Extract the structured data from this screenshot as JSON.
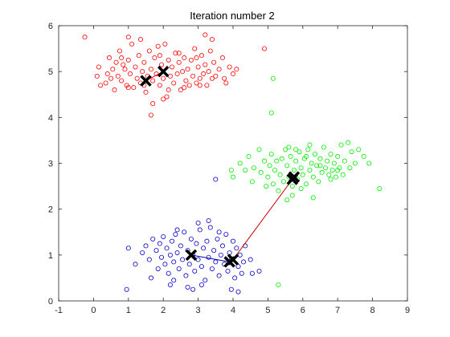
{
  "chart_data": {
    "type": "scatter",
    "title": "Iteration number 2",
    "xlabel": "",
    "ylabel": "",
    "xlim": [
      -1,
      9
    ],
    "ylim": [
      0,
      6
    ],
    "xticks": [
      -1,
      0,
      1,
      2,
      3,
      4,
      5,
      6,
      7,
      8,
      9
    ],
    "yticks": [
      0,
      1,
      2,
      3,
      4,
      5,
      6
    ],
    "grid": false,
    "legend": "none",
    "colors": {
      "cluster_1": "#ff0000",
      "cluster_2": "#00ee00",
      "cluster_3": "#0000cc",
      "centroid": "#000000",
      "path_1": "#ff0000",
      "path_2": "#00cc00",
      "path_3": "#0000aa",
      "axes": "#262626"
    },
    "series": [
      {
        "color": "#ff0000",
        "points": [
          [
            -0.25,
            5.75
          ],
          [
            0.1,
            4.9
          ],
          [
            0.15,
            5.1
          ],
          [
            0.2,
            4.7
          ],
          [
            0.35,
            4.75
          ],
          [
            0.4,
            4.95
          ],
          [
            0.45,
            5.3
          ],
          [
            0.5,
            4.85
          ],
          [
            0.55,
            5.05
          ],
          [
            0.6,
            4.6
          ],
          [
            0.65,
            5.2
          ],
          [
            0.7,
            4.9
          ],
          [
            0.75,
            5.45
          ],
          [
            0.8,
            4.8
          ],
          [
            0.85,
            5.15
          ],
          [
            0.9,
            5.05
          ],
          [
            0.95,
            4.7
          ],
          [
            1.0,
            5.75
          ],
          [
            1.0,
            5.25
          ],
          [
            1.05,
            4.95
          ],
          [
            1.1,
            5.6
          ],
          [
            1.15,
            4.65
          ],
          [
            1.2,
            5.1
          ],
          [
            1.25,
            4.85
          ],
          [
            1.3,
            5.35
          ],
          [
            1.35,
            4.75
          ],
          [
            1.4,
            5.0
          ],
          [
            1.45,
            5.2
          ],
          [
            1.5,
            4.55
          ],
          [
            1.55,
            4.9
          ],
          [
            1.6,
            5.45
          ],
          [
            1.65,
            5.05
          ],
          [
            1.7,
            4.8
          ],
          [
            1.75,
            5.3
          ],
          [
            1.8,
            4.95
          ],
          [
            1.85,
            5.55
          ],
          [
            1.9,
            4.7
          ],
          [
            1.95,
            5.15
          ],
          [
            2.0,
            4.85
          ],
          [
            2.05,
            5.6
          ],
          [
            2.1,
            4.45
          ],
          [
            2.15,
            5.25
          ],
          [
            2.2,
            4.9
          ],
          [
            2.25,
            5.1
          ],
          [
            2.3,
            4.75
          ],
          [
            2.35,
            5.4
          ],
          [
            2.4,
            4.95
          ],
          [
            2.45,
            5.2
          ],
          [
            2.5,
            4.6
          ],
          [
            2.55,
            5.0
          ],
          [
            2.6,
            5.3
          ],
          [
            2.65,
            4.8
          ],
          [
            2.7,
            5.05
          ],
          [
            2.75,
            4.7
          ],
          [
            2.8,
            5.25
          ],
          [
            2.85,
            4.9
          ],
          [
            2.9,
            5.5
          ],
          [
            2.95,
            4.75
          ],
          [
            3.0,
            5.1
          ],
          [
            3.05,
            4.85
          ],
          [
            3.1,
            5.35
          ],
          [
            3.15,
            4.95
          ],
          [
            3.2,
            5.15
          ],
          [
            3.25,
            4.7
          ],
          [
            3.3,
            5.0
          ],
          [
            3.35,
            5.45
          ],
          [
            3.4,
            4.85
          ],
          [
            3.45,
            5.2
          ],
          [
            3.5,
            4.9
          ],
          [
            3.6,
            5.05
          ],
          [
            3.7,
            5.3
          ],
          [
            3.8,
            4.75
          ],
          [
            3.9,
            5.1
          ],
          [
            4.0,
            4.95
          ],
          [
            4.1,
            5.05
          ],
          [
            1.7,
            4.3
          ],
          [
            1.65,
            4.05
          ],
          [
            2.0,
            4.4
          ],
          [
            3.2,
            5.8
          ],
          [
            3.4,
            5.7
          ],
          [
            4.9,
            5.5
          ],
          [
            1.35,
            5.7
          ],
          [
            2.45,
            5.4
          ],
          [
            1.9,
            5.35
          ],
          [
            1.0,
            4.65
          ],
          [
            0.8,
            5.3
          ],
          [
            2.6,
            4.65
          ],
          [
            3.05,
            4.7
          ],
          [
            3.75,
            4.85
          ],
          [
            2.95,
            5.3
          ],
          [
            1.45,
            4.7
          ],
          [
            2.15,
            4.6
          ]
        ]
      },
      {
        "color": "#00ee00",
        "points": [
          [
            5.15,
            4.85
          ],
          [
            5.1,
            4.1
          ],
          [
            3.95,
            2.85
          ],
          [
            4.0,
            2.7
          ],
          [
            4.2,
            3.0
          ],
          [
            4.35,
            2.85
          ],
          [
            4.45,
            3.15
          ],
          [
            4.6,
            2.9
          ],
          [
            4.75,
            3.3
          ],
          [
            4.8,
            2.8
          ],
          [
            4.9,
            3.05
          ],
          [
            5.0,
            2.7
          ],
          [
            5.05,
            2.95
          ],
          [
            5.1,
            3.2
          ],
          [
            5.15,
            2.55
          ],
          [
            5.2,
            2.85
          ],
          [
            5.25,
            3.05
          ],
          [
            5.3,
            2.4
          ],
          [
            5.35,
            2.75
          ],
          [
            5.4,
            3.1
          ],
          [
            5.45,
            2.6
          ],
          [
            5.5,
            3.3
          ],
          [
            5.55,
            2.95
          ],
          [
            5.6,
            2.7
          ],
          [
            5.65,
            3.15
          ],
          [
            5.7,
            2.5
          ],
          [
            5.75,
            2.85
          ],
          [
            5.8,
            3.05
          ],
          [
            5.85,
            2.65
          ],
          [
            5.9,
            3.25
          ],
          [
            5.95,
            2.9
          ],
          [
            6.0,
            2.75
          ],
          [
            6.05,
            3.1
          ],
          [
            6.1,
            2.55
          ],
          [
            6.15,
            3.3
          ],
          [
            6.2,
            2.85
          ],
          [
            6.25,
            3.0
          ],
          [
            6.3,
            2.7
          ],
          [
            6.35,
            3.2
          ],
          [
            6.4,
            2.95
          ],
          [
            6.45,
            2.6
          ],
          [
            6.5,
            3.1
          ],
          [
            6.55,
            2.8
          ],
          [
            6.6,
            3.35
          ],
          [
            6.65,
            2.9
          ],
          [
            6.7,
            3.05
          ],
          [
            6.75,
            2.75
          ],
          [
            6.8,
            3.2
          ],
          [
            6.85,
            2.85
          ],
          [
            6.9,
            3.0
          ],
          [
            6.95,
            2.7
          ],
          [
            7.0,
            3.15
          ],
          [
            7.05,
            2.9
          ],
          [
            7.1,
            3.4
          ],
          [
            7.15,
            2.75
          ],
          [
            7.2,
            3.05
          ],
          [
            7.3,
            3.45
          ],
          [
            7.35,
            2.9
          ],
          [
            7.4,
            3.25
          ],
          [
            7.5,
            3.0
          ],
          [
            7.6,
            3.3
          ],
          [
            7.75,
            3.15
          ],
          [
            7.9,
            3.0
          ],
          [
            8.2,
            2.45
          ],
          [
            6.3,
            2.25
          ],
          [
            5.95,
            2.45
          ],
          [
            5.7,
            2.3
          ],
          [
            6.2,
            3.4
          ],
          [
            5.6,
            3.35
          ],
          [
            4.95,
            2.5
          ],
          [
            5.55,
            2.2
          ],
          [
            6.8,
            2.65
          ],
          [
            6.5,
            2.95
          ],
          [
            7.0,
            2.85
          ],
          [
            5.8,
            3.3
          ],
          [
            6.1,
            3.15
          ],
          [
            4.55,
            2.6
          ],
          [
            5.3,
            0.35
          ]
        ]
      },
      {
        "color": "#0000cc",
        "points": [
          [
            3.5,
            2.65
          ],
          [
            0.95,
            0.25
          ],
          [
            1.0,
            1.15
          ],
          [
            1.2,
            0.8
          ],
          [
            1.4,
            1.05
          ],
          [
            1.5,
            1.2
          ],
          [
            1.6,
            0.9
          ],
          [
            1.7,
            1.35
          ],
          [
            1.8,
            1.1
          ],
          [
            1.85,
            0.7
          ],
          [
            1.9,
            1.25
          ],
          [
            1.95,
            0.95
          ],
          [
            2.0,
            1.4
          ],
          [
            2.05,
            0.8
          ],
          [
            2.1,
            1.15
          ],
          [
            2.15,
            0.6
          ],
          [
            2.2,
            1.0
          ],
          [
            2.25,
            1.3
          ],
          [
            2.3,
            0.85
          ],
          [
            2.35,
            1.45
          ],
          [
            2.4,
            1.05
          ],
          [
            2.45,
            0.7
          ],
          [
            2.5,
            1.2
          ],
          [
            2.55,
            0.9
          ],
          [
            2.6,
            1.5
          ],
          [
            2.65,
            0.55
          ],
          [
            2.7,
            1.1
          ],
          [
            2.75,
            0.8
          ],
          [
            2.8,
            1.35
          ],
          [
            2.85,
            1.0
          ],
          [
            2.9,
            0.65
          ],
          [
            2.95,
            1.25
          ],
          [
            3.0,
            0.9
          ],
          [
            3.05,
            1.55
          ],
          [
            3.1,
            0.75
          ],
          [
            3.15,
            1.15
          ],
          [
            3.2,
            0.45
          ],
          [
            3.25,
            1.3
          ],
          [
            3.3,
            0.95
          ],
          [
            3.35,
            1.6
          ],
          [
            3.4,
            0.7
          ],
          [
            3.45,
            1.1
          ],
          [
            3.5,
            0.85
          ],
          [
            3.55,
            1.35
          ],
          [
            3.6,
            0.55
          ],
          [
            3.65,
            1.0
          ],
          [
            3.7,
            1.2
          ],
          [
            3.75,
            0.8
          ],
          [
            3.8,
            1.45
          ],
          [
            3.85,
            0.65
          ],
          [
            3.9,
            1.05
          ],
          [
            3.95,
            0.9
          ],
          [
            4.0,
            1.3
          ],
          [
            4.05,
            0.5
          ],
          [
            4.1,
            1.15
          ],
          [
            4.15,
            0.75
          ],
          [
            4.2,
            1.0
          ],
          [
            4.25,
            0.6
          ],
          [
            4.3,
            0.85
          ],
          [
            4.5,
            0.9
          ],
          [
            4.75,
            0.65
          ],
          [
            3.95,
            0.25
          ],
          [
            4.15,
            0.2
          ],
          [
            2.85,
            0.25
          ],
          [
            2.3,
            0.45
          ],
          [
            3.0,
            1.7
          ],
          [
            2.7,
            0.3
          ],
          [
            1.65,
            0.5
          ],
          [
            2.4,
            1.55
          ],
          [
            3.6,
            1.5
          ],
          [
            3.3,
            1.75
          ],
          [
            4.35,
            1.2
          ],
          [
            2.2,
            0.35
          ],
          [
            3.1,
            0.35
          ],
          [
            4.55,
            0.6
          ]
        ]
      }
    ],
    "centroid_paths": [
      {
        "color": "#ff0000",
        "points": [
          [
            1.5,
            4.8
          ],
          [
            2.0,
            5.0
          ]
        ]
      },
      {
        "color": "#00cc00",
        "points": [
          [
            5.7,
            2.65
          ],
          [
            5.75,
            2.7
          ]
        ]
      },
      {
        "color": "#0000aa",
        "points": [
          [
            2.8,
            1.0
          ],
          [
            3.9,
            0.85
          ]
        ]
      },
      {
        "color": "#cc0000",
        "points": [
          [
            4.0,
            0.9
          ],
          [
            5.75,
            2.7
          ]
        ]
      }
    ],
    "centroids": [
      [
        1.5,
        4.8
      ],
      [
        2.0,
        5.0
      ],
      [
        5.7,
        2.65
      ],
      [
        5.75,
        2.7
      ],
      [
        2.8,
        1.0
      ],
      [
        3.9,
        0.85
      ],
      [
        4.0,
        0.9
      ]
    ]
  }
}
